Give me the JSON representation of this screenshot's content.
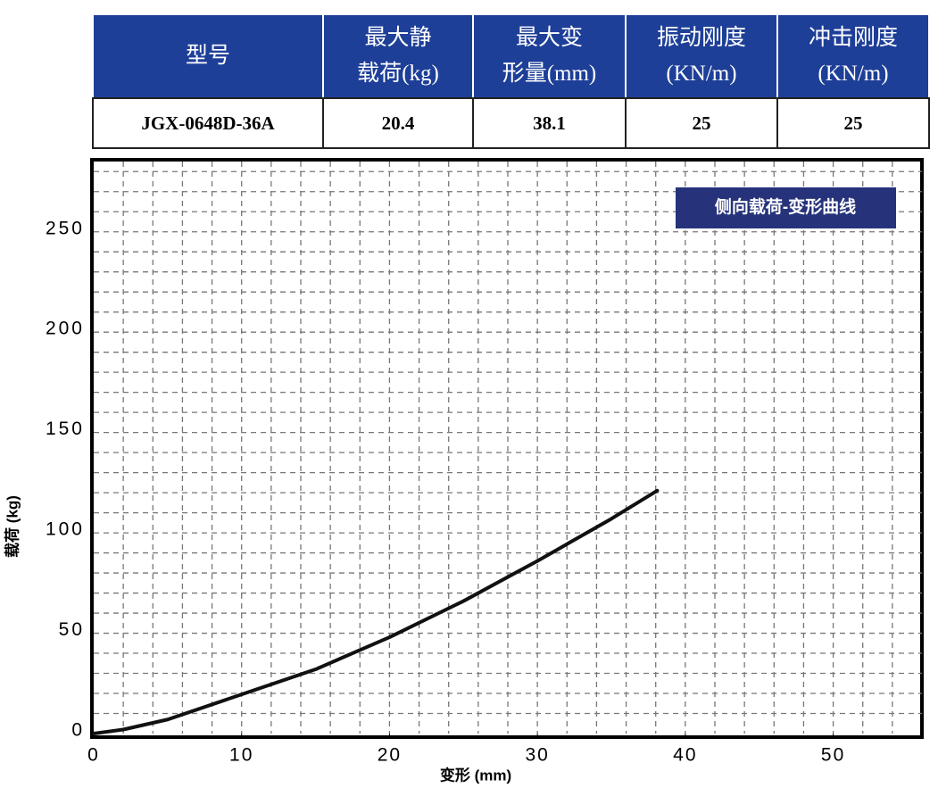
{
  "table": {
    "headers": [
      [
        "型号"
      ],
      [
        "最大静",
        "载荷(kg)"
      ],
      [
        "最大变",
        "形量(mm)"
      ],
      [
        "振动刚度",
        "(KN/m)"
      ],
      [
        "冲击刚度",
        "(KN/m)"
      ]
    ],
    "rows": [
      [
        "JGX-0648D-36A",
        "20.4",
        "38.1",
        "25",
        "25"
      ]
    ]
  },
  "chart_data": {
    "type": "line",
    "title": "侧向载荷-变形曲线",
    "x_label": "变形 (mm)",
    "y_label": "载荷 (kg)",
    "x": [
      0,
      2,
      5,
      10,
      15,
      20,
      25,
      30,
      35,
      38.1
    ],
    "values": [
      0,
      2,
      7,
      19.5,
      32,
      48,
      66,
      86,
      107,
      121
    ],
    "color": "#111111",
    "xlim": [
      0,
      56
    ],
    "ylim": [
      0,
      285
    ],
    "xticks": [
      0,
      10,
      20,
      30,
      40,
      50
    ],
    "yticks": [
      0,
      50,
      100,
      150,
      200,
      250
    ],
    "grid": true,
    "grid_step_x": 2,
    "grid_step_y": 10
  }
}
